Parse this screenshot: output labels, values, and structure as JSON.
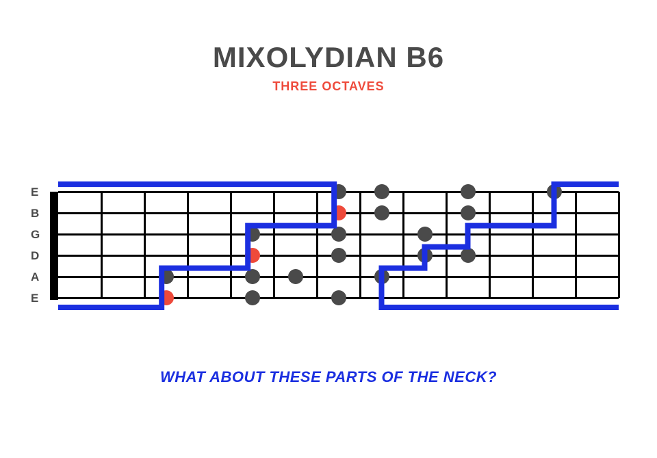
{
  "title": {
    "text": "MIXOLYDIAN b6",
    "color": "#4a4a4a",
    "fontsize": 42
  },
  "subtitle": {
    "text": "THREE OCTAVES",
    "color": "#ee4a3b",
    "fontsize": 18
  },
  "footer": {
    "text": "WHAT ABOUT THESE PARTS OF THE NECK?",
    "color": "#1b2fe0",
    "fontsize": 22
  },
  "fretboard": {
    "strings": [
      "E",
      "B",
      "G",
      "D",
      "A",
      "E"
    ],
    "num_strings": 6,
    "num_frets": 13,
    "string_spacing": 31,
    "fret_spacing": 63,
    "grid_color": "#000000",
    "nut_color": "#000000",
    "dot_color_normal": "#4a4a4a",
    "dot_color_root": "#ee4a3b",
    "outline_color": "#1b2fe0",
    "outline_width": 8,
    "notes": [
      {
        "string": 5,
        "fret": 3,
        "root": true
      },
      {
        "string": 5,
        "fret": 5,
        "root": false
      },
      {
        "string": 5,
        "fret": 7,
        "root": false
      },
      {
        "string": 4,
        "fret": 3,
        "root": false
      },
      {
        "string": 4,
        "fret": 5,
        "root": false
      },
      {
        "string": 4,
        "fret": 6,
        "root": false
      },
      {
        "string": 4,
        "fret": 8,
        "root": false
      },
      {
        "string": 3,
        "fret": 5,
        "root": true
      },
      {
        "string": 3,
        "fret": 7,
        "root": false
      },
      {
        "string": 3,
        "fret": 9,
        "root": false
      },
      {
        "string": 3,
        "fret": 10,
        "root": false
      },
      {
        "string": 2,
        "fret": 5,
        "root": false
      },
      {
        "string": 2,
        "fret": 7,
        "root": false
      },
      {
        "string": 2,
        "fret": 9,
        "root": false
      },
      {
        "string": 1,
        "fret": 7,
        "root": true
      },
      {
        "string": 1,
        "fret": 8,
        "root": false
      },
      {
        "string": 1,
        "fret": 10,
        "root": false
      },
      {
        "string": 0,
        "fret": 7,
        "root": false
      },
      {
        "string": 0,
        "fret": 8,
        "root": false
      },
      {
        "string": 0,
        "fret": 10,
        "root": false
      },
      {
        "string": 0,
        "fret": 12,
        "root": false
      }
    ],
    "outline_regions": [
      [
        [
          0,
          -0.35
        ],
        [
          6.4,
          -0.35
        ],
        [
          6.4,
          1.6
        ],
        [
          4.4,
          1.6
        ],
        [
          4.4,
          3.6
        ],
        [
          2.4,
          3.6
        ],
        [
          2.4,
          5.45
        ],
        [
          0,
          5.45
        ]
      ],
      [
        [
          13,
          -0.35
        ],
        [
          11.5,
          -0.35
        ],
        [
          11.5,
          1.6
        ],
        [
          9.5,
          1.6
        ],
        [
          9.5,
          2.6
        ],
        [
          8.5,
          2.6
        ],
        [
          8.5,
          3.6
        ],
        [
          7.5,
          3.6
        ],
        [
          7.5,
          5.45
        ],
        [
          13,
          5.45
        ]
      ]
    ]
  }
}
